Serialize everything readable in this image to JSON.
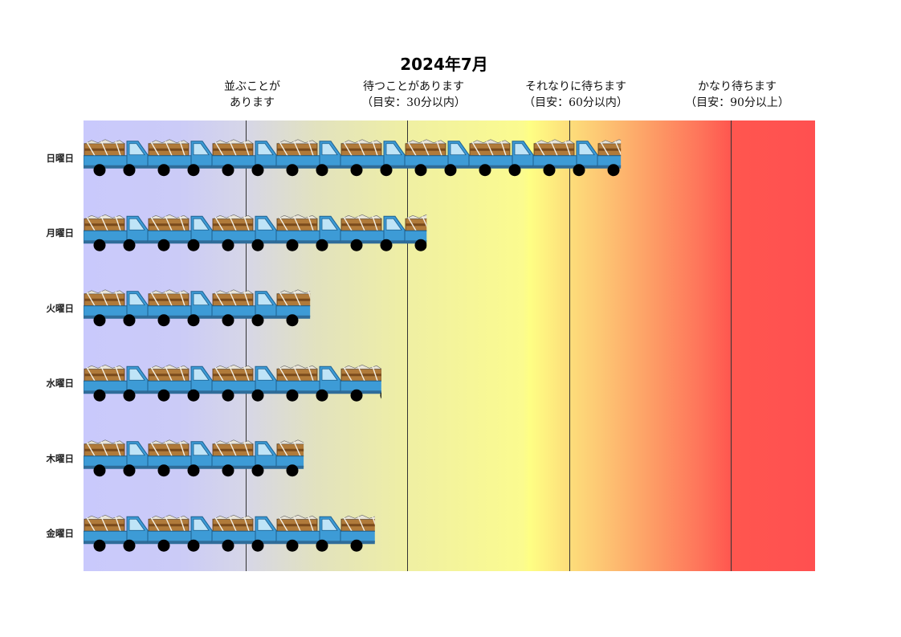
{
  "chart_data": {
    "type": "bar",
    "title": "2024年7月",
    "categories": [
      "日曜日",
      "月曜日",
      "火曜日",
      "水曜日",
      "木曜日",
      "金曜日"
    ],
    "values": [
      83,
      53,
      35,
      46,
      34,
      45
    ],
    "xlim": [
      0,
      113
    ],
    "levels": [
      {
        "label_lines": [
          "並ぶことが",
          "あります"
        ],
        "start": 25
      },
      {
        "label_lines": [
          "待つことがあります",
          "（目安：30分以内）"
        ],
        "start": 50
      },
      {
        "label_lines": [
          "それなりに待ちます",
          "（目安：60分以内）"
        ],
        "start": 75
      },
      {
        "label_lines": [
          "かなり待ちます",
          "（目安：90分以上）"
        ],
        "start": 100
      }
    ],
    "background_gradient": [
      "#c9c9fc",
      "#fefe84",
      "#ff5050"
    ],
    "bar_style": "truck-pictogram"
  }
}
